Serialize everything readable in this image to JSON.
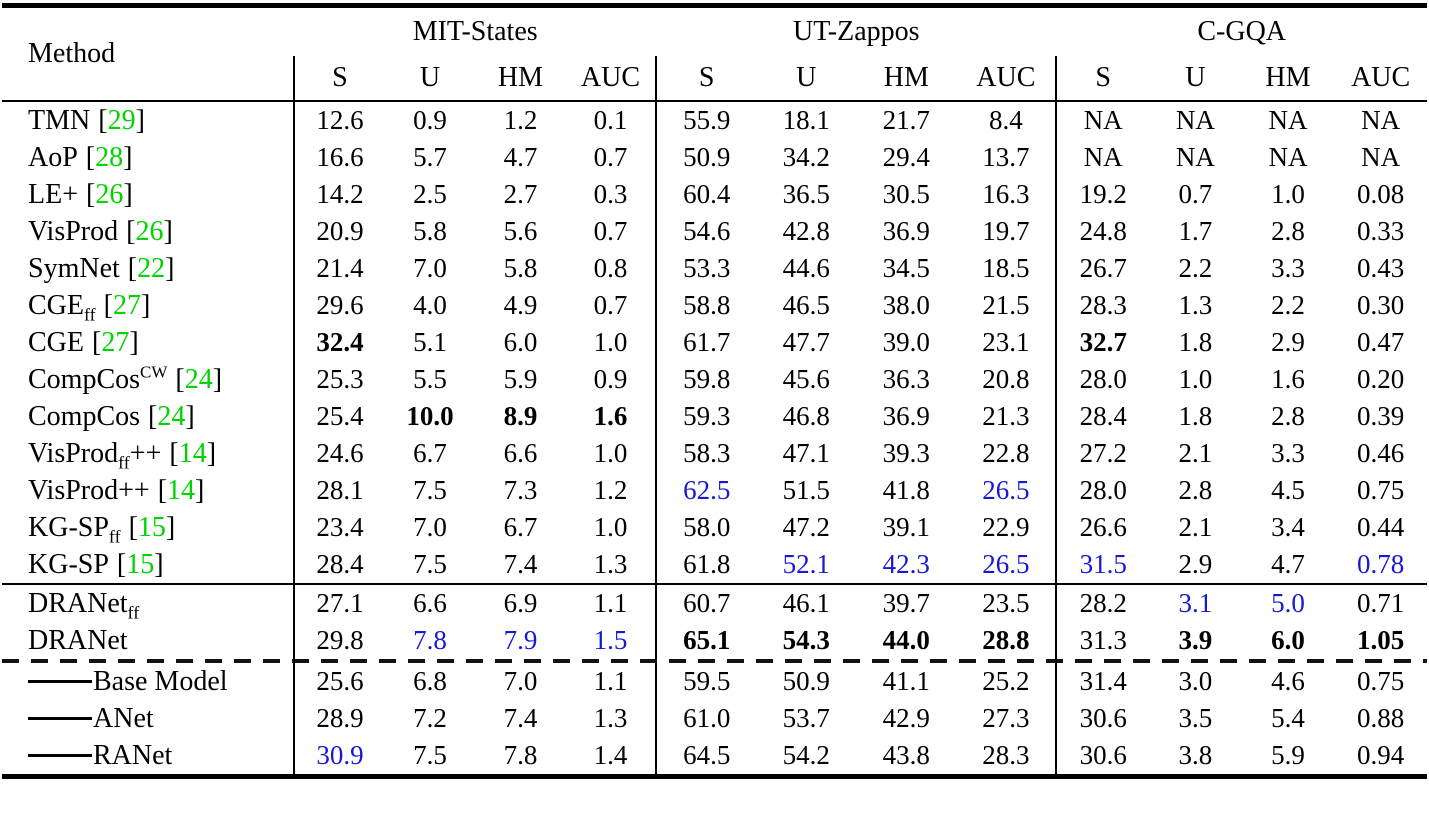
{
  "table": {
    "method_header": "Method",
    "citation_open": "[",
    "citation_close": "]",
    "colors": {
      "citation_green": "#00d300",
      "highlight_blue": "#1717d6"
    },
    "col_groups": [
      {
        "label": "MIT-States"
      },
      {
        "label": "UT-Zappos"
      },
      {
        "label": "C-GQA"
      }
    ],
    "sub_headers": [
      "S",
      "U",
      "HM",
      "AUC"
    ],
    "sections": [
      {
        "type": "baselines",
        "rows": [
          {
            "method": {
              "name": "TMN",
              "cite": "29"
            },
            "cells": [
              [
                "12.6",
                ""
              ],
              [
                "0.9",
                ""
              ],
              [
                "1.2",
                ""
              ],
              [
                "0.1",
                ""
              ],
              [
                "55.9",
                ""
              ],
              [
                "18.1",
                ""
              ],
              [
                "21.7",
                ""
              ],
              [
                "8.4",
                ""
              ],
              [
                "NA",
                ""
              ],
              [
                "NA",
                ""
              ],
              [
                "NA",
                ""
              ],
              [
                "NA",
                ""
              ]
            ]
          },
          {
            "method": {
              "name": "AoP",
              "cite": "28"
            },
            "cells": [
              [
                "16.6",
                ""
              ],
              [
                "5.7",
                ""
              ],
              [
                "4.7",
                ""
              ],
              [
                "0.7",
                ""
              ],
              [
                "50.9",
                ""
              ],
              [
                "34.2",
                ""
              ],
              [
                "29.4",
                ""
              ],
              [
                "13.7",
                ""
              ],
              [
                "NA",
                ""
              ],
              [
                "NA",
                ""
              ],
              [
                "NA",
                ""
              ],
              [
                "NA",
                ""
              ]
            ]
          },
          {
            "method": {
              "name": "LE+",
              "cite": "26"
            },
            "cells": [
              [
                "14.2",
                ""
              ],
              [
                "2.5",
                ""
              ],
              [
                "2.7",
                ""
              ],
              [
                "0.3",
                ""
              ],
              [
                "60.4",
                ""
              ],
              [
                "36.5",
                ""
              ],
              [
                "30.5",
                ""
              ],
              [
                "16.3",
                ""
              ],
              [
                "19.2",
                ""
              ],
              [
                "0.7",
                ""
              ],
              [
                "1.0",
                ""
              ],
              [
                "0.08",
                ""
              ]
            ]
          },
          {
            "method": {
              "name": "VisProd",
              "cite": "26"
            },
            "cells": [
              [
                "20.9",
                ""
              ],
              [
                "5.8",
                ""
              ],
              [
                "5.6",
                ""
              ],
              [
                "0.7",
                ""
              ],
              [
                "54.6",
                ""
              ],
              [
                "42.8",
                ""
              ],
              [
                "36.9",
                ""
              ],
              [
                "19.7",
                ""
              ],
              [
                "24.8",
                ""
              ],
              [
                "1.7",
                ""
              ],
              [
                "2.8",
                ""
              ],
              [
                "0.33",
                ""
              ]
            ]
          },
          {
            "method": {
              "name": "SymNet",
              "cite": "22"
            },
            "cells": [
              [
                "21.4",
                ""
              ],
              [
                "7.0",
                ""
              ],
              [
                "5.8",
                ""
              ],
              [
                "0.8",
                ""
              ],
              [
                "53.3",
                ""
              ],
              [
                "44.6",
                ""
              ],
              [
                "34.5",
                ""
              ],
              [
                "18.5",
                ""
              ],
              [
                "26.7",
                ""
              ],
              [
                "2.2",
                ""
              ],
              [
                "3.3",
                ""
              ],
              [
                "0.43",
                ""
              ]
            ]
          },
          {
            "method": {
              "name": "CGE",
              "sub": "ff",
              "cite": "27"
            },
            "cells": [
              [
                "29.6",
                ""
              ],
              [
                "4.0",
                ""
              ],
              [
                "4.9",
                ""
              ],
              [
                "0.7",
                ""
              ],
              [
                "58.8",
                ""
              ],
              [
                "46.5",
                ""
              ],
              [
                "38.0",
                ""
              ],
              [
                "21.5",
                ""
              ],
              [
                "28.3",
                ""
              ],
              [
                "1.3",
                ""
              ],
              [
                "2.2",
                ""
              ],
              [
                "0.30",
                ""
              ]
            ]
          },
          {
            "method": {
              "name": "CGE",
              "cite": "27"
            },
            "cells": [
              [
                "32.4",
                "b"
              ],
              [
                "5.1",
                ""
              ],
              [
                "6.0",
                ""
              ],
              [
                "1.0",
                ""
              ],
              [
                "61.7",
                ""
              ],
              [
                "47.7",
                ""
              ],
              [
                "39.0",
                ""
              ],
              [
                "23.1",
                ""
              ],
              [
                "32.7",
                "b"
              ],
              [
                "1.8",
                ""
              ],
              [
                "2.9",
                ""
              ],
              [
                "0.47",
                ""
              ]
            ]
          },
          {
            "method": {
              "name": "CompCos",
              "sup": "CW",
              "cite": "24"
            },
            "cells": [
              [
                "25.3",
                ""
              ],
              [
                "5.5",
                ""
              ],
              [
                "5.9",
                ""
              ],
              [
                "0.9",
                ""
              ],
              [
                "59.8",
                ""
              ],
              [
                "45.6",
                ""
              ],
              [
                "36.3",
                ""
              ],
              [
                "20.8",
                ""
              ],
              [
                "28.0",
                ""
              ],
              [
                "1.0",
                ""
              ],
              [
                "1.6",
                ""
              ],
              [
                "0.20",
                ""
              ]
            ]
          },
          {
            "method": {
              "name": "CompCos",
              "cite": "24"
            },
            "cells": [
              [
                "25.4",
                ""
              ],
              [
                "10.0",
                "b"
              ],
              [
                "8.9",
                "b"
              ],
              [
                "1.6",
                "b"
              ],
              [
                "59.3",
                ""
              ],
              [
                "46.8",
                ""
              ],
              [
                "36.9",
                ""
              ],
              [
                "21.3",
                ""
              ],
              [
                "28.4",
                ""
              ],
              [
                "1.8",
                ""
              ],
              [
                "2.8",
                ""
              ],
              [
                "0.39",
                ""
              ]
            ]
          },
          {
            "method": {
              "name": "VisProd",
              "sub": "ff",
              "post": "++",
              "cite": "14"
            },
            "cells": [
              [
                "24.6",
                ""
              ],
              [
                "6.7",
                ""
              ],
              [
                "6.6",
                ""
              ],
              [
                "1.0",
                ""
              ],
              [
                "58.3",
                ""
              ],
              [
                "47.1",
                ""
              ],
              [
                "39.3",
                ""
              ],
              [
                "22.8",
                ""
              ],
              [
                "27.2",
                ""
              ],
              [
                "2.1",
                ""
              ],
              [
                "3.3",
                ""
              ],
              [
                "0.46",
                ""
              ]
            ]
          },
          {
            "method": {
              "name": "VisProd++",
              "cite": "14"
            },
            "cells": [
              [
                "28.1",
                ""
              ],
              [
                "7.5",
                ""
              ],
              [
                "7.3",
                ""
              ],
              [
                "1.2",
                ""
              ],
              [
                "62.5",
                "h"
              ],
              [
                "51.5",
                ""
              ],
              [
                "41.8",
                ""
              ],
              [
                "26.5",
                "h"
              ],
              [
                "28.0",
                ""
              ],
              [
                "2.8",
                ""
              ],
              [
                "4.5",
                ""
              ],
              [
                "0.75",
                ""
              ]
            ]
          },
          {
            "method": {
              "name": "KG-SP",
              "sub": "ff",
              "cite": "15"
            },
            "cells": [
              [
                "23.4",
                ""
              ],
              [
                "7.0",
                ""
              ],
              [
                "6.7",
                ""
              ],
              [
                "1.0",
                ""
              ],
              [
                "58.0",
                ""
              ],
              [
                "47.2",
                ""
              ],
              [
                "39.1",
                ""
              ],
              [
                "22.9",
                ""
              ],
              [
                "26.6",
                ""
              ],
              [
                "2.1",
                ""
              ],
              [
                "3.4",
                ""
              ],
              [
                "0.44",
                ""
              ]
            ]
          },
          {
            "method": {
              "name": "KG-SP",
              "cite": "15"
            },
            "cells": [
              [
                "28.4",
                ""
              ],
              [
                "7.5",
                ""
              ],
              [
                "7.4",
                ""
              ],
              [
                "1.3",
                ""
              ],
              [
                "61.8",
                ""
              ],
              [
                "52.1",
                "h"
              ],
              [
                "42.3",
                "h"
              ],
              [
                "26.5",
                "h"
              ],
              [
                "31.5",
                "h"
              ],
              [
                "2.9",
                ""
              ],
              [
                "4.7",
                ""
              ],
              [
                "0.78",
                "h"
              ]
            ]
          }
        ]
      },
      {
        "type": "ours",
        "rows": [
          {
            "method": {
              "name": "DRANet",
              "sub": "ff"
            },
            "cells": [
              [
                "27.1",
                ""
              ],
              [
                "6.6",
                ""
              ],
              [
                "6.9",
                ""
              ],
              [
                "1.1",
                ""
              ],
              [
                "60.7",
                ""
              ],
              [
                "46.1",
                ""
              ],
              [
                "39.7",
                ""
              ],
              [
                "23.5",
                ""
              ],
              [
                "28.2",
                ""
              ],
              [
                "3.1",
                "h"
              ],
              [
                "5.0",
                "h"
              ],
              [
                "0.71",
                ""
              ]
            ]
          },
          {
            "method": {
              "name": "DRANet"
            },
            "cells": [
              [
                "29.8",
                ""
              ],
              [
                "7.8",
                "h"
              ],
              [
                "7.9",
                "h"
              ],
              [
                "1.5",
                "h"
              ],
              [
                "65.1",
                "b"
              ],
              [
                "54.3",
                "b"
              ],
              [
                "44.0",
                "b"
              ],
              [
                "28.8",
                "b"
              ],
              [
                "31.3",
                ""
              ],
              [
                "3.9",
                "b"
              ],
              [
                "6.0",
                "b"
              ],
              [
                "1.05",
                "b"
              ]
            ]
          }
        ]
      },
      {
        "type": "ablation",
        "rows": [
          {
            "method": {
              "name": "Base Model",
              "dash": true
            },
            "cells": [
              [
                "25.6",
                ""
              ],
              [
                "6.8",
                ""
              ],
              [
                "7.0",
                ""
              ],
              [
                "1.1",
                ""
              ],
              [
                "59.5",
                ""
              ],
              [
                "50.9",
                ""
              ],
              [
                "41.1",
                ""
              ],
              [
                "25.2",
                ""
              ],
              [
                "31.4",
                ""
              ],
              [
                "3.0",
                ""
              ],
              [
                "4.6",
                ""
              ],
              [
                "0.75",
                ""
              ]
            ]
          },
          {
            "method": {
              "name": "ANet",
              "dash": true
            },
            "cells": [
              [
                "28.9",
                ""
              ],
              [
                "7.2",
                ""
              ],
              [
                "7.4",
                ""
              ],
              [
                "1.3",
                ""
              ],
              [
                "61.0",
                ""
              ],
              [
                "53.7",
                ""
              ],
              [
                "42.9",
                ""
              ],
              [
                "27.3",
                ""
              ],
              [
                "30.6",
                ""
              ],
              [
                "3.5",
                ""
              ],
              [
                "5.4",
                ""
              ],
              [
                "0.88",
                ""
              ]
            ]
          },
          {
            "method": {
              "name": "RANet",
              "dash": true
            },
            "cells": [
              [
                "30.9",
                "h"
              ],
              [
                "7.5",
                ""
              ],
              [
                "7.8",
                ""
              ],
              [
                "1.4",
                ""
              ],
              [
                "64.5",
                ""
              ],
              [
                "54.2",
                ""
              ],
              [
                "43.8",
                ""
              ],
              [
                "28.3",
                ""
              ],
              [
                "30.6",
                ""
              ],
              [
                "3.8",
                ""
              ],
              [
                "5.9",
                ""
              ],
              [
                "0.94",
                ""
              ]
            ]
          }
        ]
      }
    ]
  }
}
